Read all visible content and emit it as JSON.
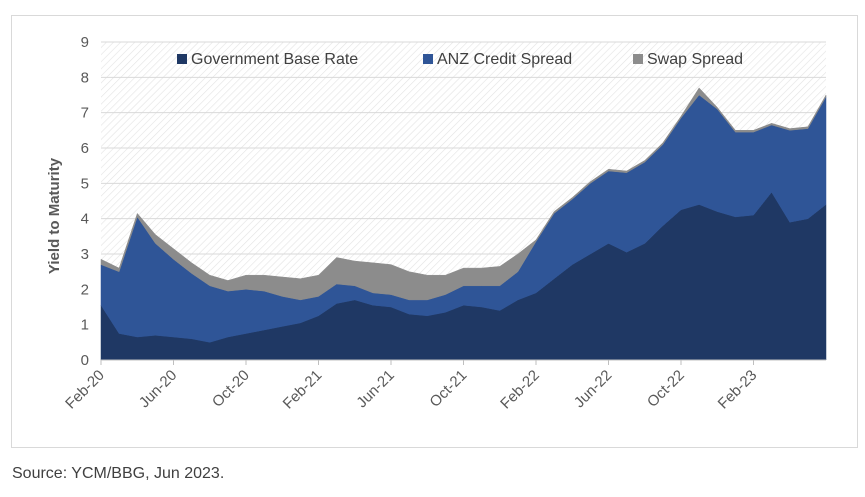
{
  "chart_data": {
    "type": "area",
    "stacked": true,
    "title": "",
    "ylabel": "Yield to Maturity",
    "xlabel": "",
    "ylim": [
      0,
      9
    ],
    "yticks": [
      "0",
      "1",
      "2",
      "3",
      "4",
      "5",
      "6",
      "7",
      "8",
      "9"
    ],
    "x_start": "2020-02",
    "x_end": "2023-06",
    "xticks": [
      "Feb-20",
      "Jun-20",
      "Oct-20",
      "Feb-21",
      "Jun-21",
      "Oct-21",
      "Feb-22",
      "Jun-22",
      "Oct-22",
      "Feb-23"
    ],
    "grid": "horizontal",
    "legend_position": "top-center",
    "x": [
      "2020-02",
      "2020-03",
      "2020-04",
      "2020-05",
      "2020-06",
      "2020-07",
      "2020-08",
      "2020-09",
      "2020-10",
      "2020-11",
      "2020-12",
      "2021-01",
      "2021-02",
      "2021-03",
      "2021-04",
      "2021-05",
      "2021-06",
      "2021-07",
      "2021-08",
      "2021-09",
      "2021-10",
      "2021-11",
      "2021-12",
      "2022-01",
      "2022-02",
      "2022-03",
      "2022-04",
      "2022-05",
      "2022-06",
      "2022-07",
      "2022-08",
      "2022-09",
      "2022-10",
      "2022-11",
      "2022-12",
      "2023-01",
      "2023-02",
      "2023-03",
      "2023-04",
      "2023-05",
      "2023-06"
    ],
    "series": [
      {
        "name": "Government Base Rate",
        "color": "#1f3864",
        "values": [
          1.55,
          0.75,
          0.65,
          0.7,
          0.65,
          0.6,
          0.5,
          0.65,
          0.75,
          0.85,
          0.95,
          1.05,
          1.25,
          1.6,
          1.7,
          1.55,
          1.5,
          1.3,
          1.25,
          1.35,
          1.55,
          1.5,
          1.4,
          1.7,
          1.9,
          2.3,
          2.7,
          3.0,
          3.3,
          3.05,
          3.3,
          3.8,
          4.25,
          4.4,
          4.2,
          4.05,
          4.1,
          4.75,
          3.9,
          4.0,
          4.4
        ]
      },
      {
        "name": "ANZ Credit Spread",
        "color": "#2f5597",
        "values": [
          1.15,
          1.75,
          3.4,
          2.6,
          2.2,
          1.85,
          1.6,
          1.3,
          1.25,
          1.1,
          0.85,
          0.65,
          0.55,
          0.55,
          0.4,
          0.35,
          0.35,
          0.4,
          0.45,
          0.5,
          0.55,
          0.6,
          0.7,
          0.8,
          1.45,
          1.85,
          1.85,
          2.0,
          2.05,
          2.25,
          2.3,
          2.3,
          2.6,
          3.1,
          2.9,
          2.4,
          2.35,
          1.9,
          2.6,
          2.55,
          3.05
        ]
      },
      {
        "name": "Swap Spread",
        "color": "#8c8c8c",
        "values": [
          0.15,
          0.1,
          0.1,
          0.25,
          0.3,
          0.3,
          0.3,
          0.3,
          0.4,
          0.45,
          0.55,
          0.6,
          0.6,
          0.75,
          0.7,
          0.85,
          0.85,
          0.8,
          0.7,
          0.55,
          0.5,
          0.5,
          0.55,
          0.5,
          0.05,
          0.05,
          0.05,
          0.05,
          0.05,
          0.05,
          0.05,
          0.05,
          0.05,
          0.2,
          0.05,
          0.05,
          0.05,
          0.05,
          0.05,
          0.05,
          0.05
        ]
      }
    ]
  },
  "source": "Source: YCM/BBG, Jun 2023."
}
